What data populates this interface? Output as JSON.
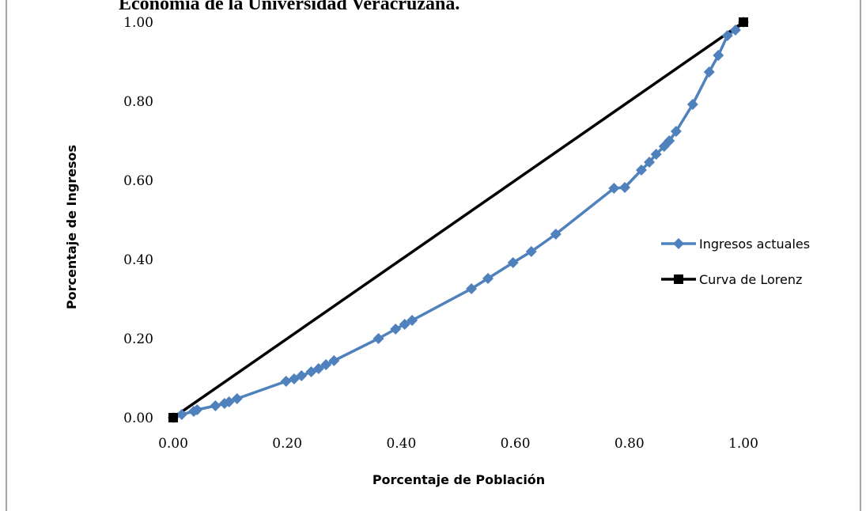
{
  "chart_data": {
    "type": "line",
    "title": "Economía de la Universidad Veracruzana.",
    "x_label": "Porcentaje de Población",
    "y_label": "Porcentaje de Ingresos",
    "xlim": [
      0,
      1
    ],
    "ylim": [
      0,
      1
    ],
    "xticks": [
      {
        "value": 0,
        "label": "0.00"
      },
      {
        "value": 0.2,
        "label": "0.20"
      },
      {
        "value": 0.4,
        "label": "0.40"
      },
      {
        "value": 0.6,
        "label": "0.60"
      },
      {
        "value": 0.8,
        "label": "0.80"
      },
      {
        "value": 1,
        "label": "1.00"
      }
    ],
    "yticks": [
      {
        "value": 0,
        "label": "0.00"
      },
      {
        "value": 0.2,
        "label": "0.20"
      },
      {
        "value": 0.4,
        "label": "0.40"
      },
      {
        "value": 0.6,
        "label": "0.60"
      },
      {
        "value": 0.8,
        "label": "0.80"
      },
      {
        "value": 1,
        "label": "1.00"
      }
    ],
    "legend": "right",
    "series": [
      {
        "name": "Ingresos actuales",
        "color": "#4f81bd",
        "marker": "diamond",
        "x": [
          0,
          0.015,
          0.036,
          0.042,
          0.074,
          0.09,
          0.098,
          0.112,
          0.198,
          0.212,
          0.225,
          0.242,
          0.255,
          0.268,
          0.282,
          0.36,
          0.39,
          0.406,
          0.419,
          0.523,
          0.552,
          0.596,
          0.628,
          0.671,
          0.773,
          0.792,
          0.821,
          0.835,
          0.847,
          0.861,
          0.87,
          0.882,
          0.911,
          0.94,
          0.956,
          0.972,
          0.986,
          1
        ],
        "values": [
          0,
          0.008,
          0.016,
          0.02,
          0.03,
          0.036,
          0.04,
          0.048,
          0.092,
          0.098,
          0.106,
          0.116,
          0.124,
          0.134,
          0.144,
          0.2,
          0.224,
          0.236,
          0.246,
          0.326,
          0.352,
          0.392,
          0.42,
          0.464,
          0.58,
          0.582,
          0.626,
          0.646,
          0.666,
          0.686,
          0.7,
          0.724,
          0.792,
          0.874,
          0.916,
          0.966,
          0.98,
          1
        ]
      },
      {
        "name": "Curva de Lorenz",
        "color": "#000000",
        "marker": "square",
        "x": [
          0,
          1
        ],
        "values": [
          0,
          1
        ]
      }
    ]
  }
}
